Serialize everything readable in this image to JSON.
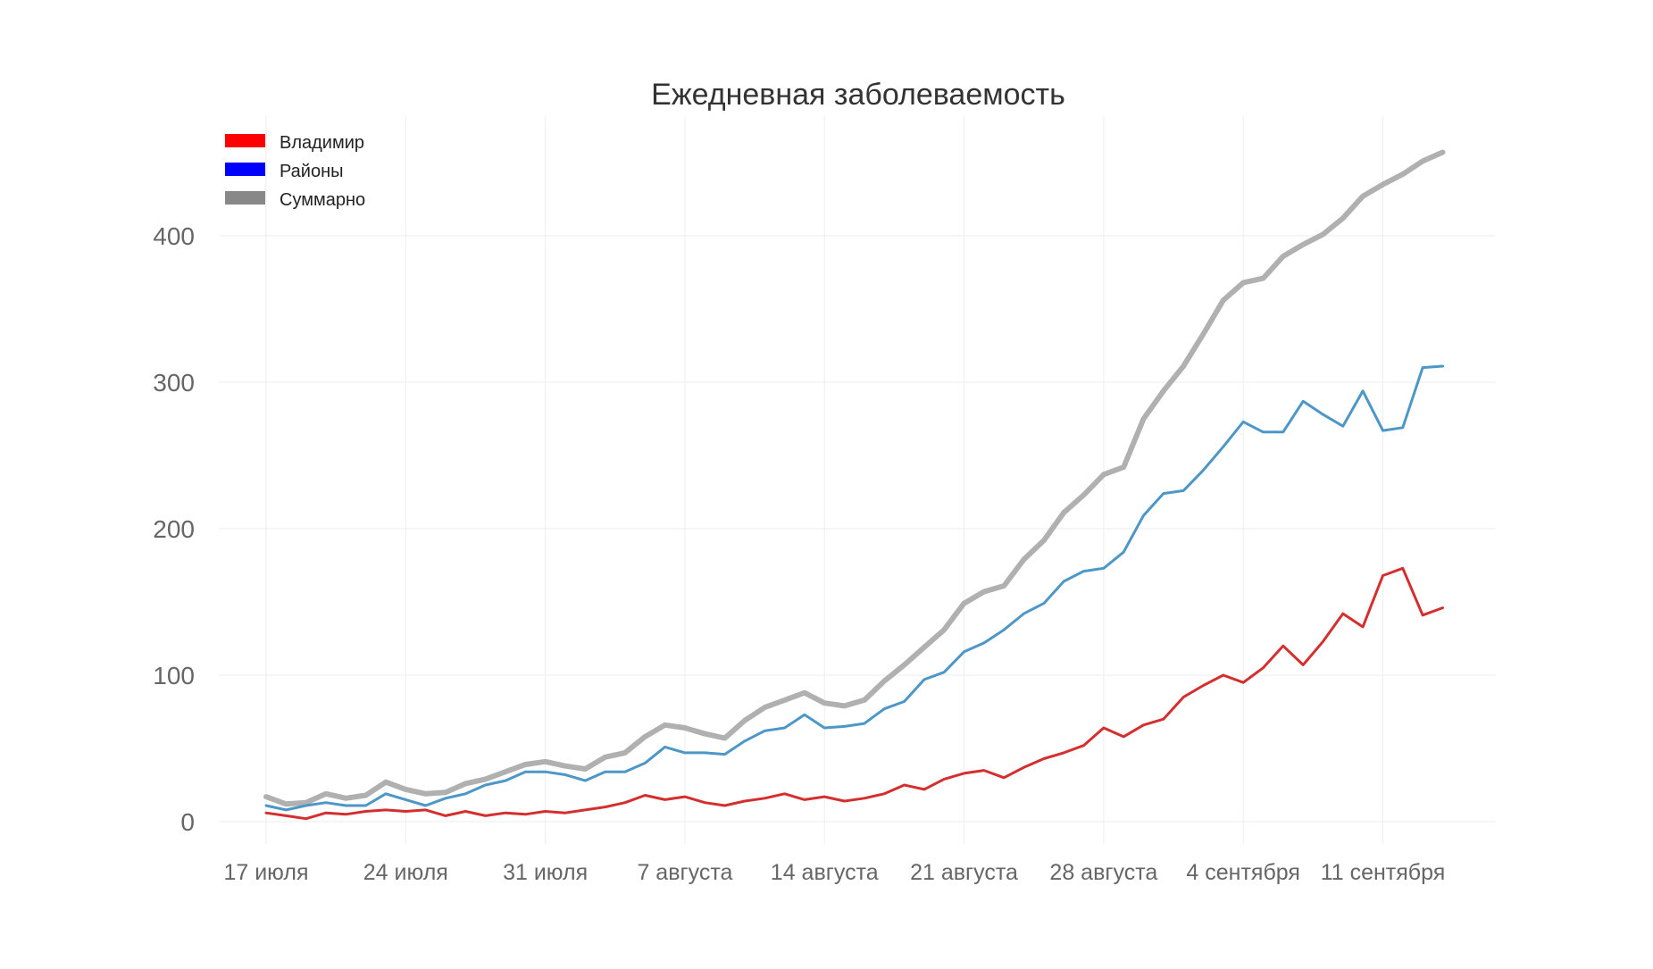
{
  "chart_data": {
    "type": "line",
    "title": "Ежедневная заболеваемость",
    "xlabel": "",
    "ylabel": "",
    "ylim": [
      -20,
      470
    ],
    "yticks": [
      0,
      100,
      200,
      300,
      400
    ],
    "xtick_labels": [
      "17 июля",
      "24 июля",
      "31 июля",
      "7 августа",
      "14 августа",
      "21 августа",
      "28 августа",
      "4 сентября",
      "11 сентября"
    ],
    "x_start": "17 июля",
    "grid": true,
    "legend_position": "top-left",
    "series": [
      {
        "name": "Владимир",
        "legend_color": "#ff0000",
        "line_color": "#d32f2f",
        "values": [
          6,
          4,
          2,
          6,
          5,
          7,
          8,
          7,
          8,
          4,
          7,
          4,
          6,
          5,
          7,
          6,
          8,
          10,
          13,
          18,
          15,
          17,
          13,
          11,
          14,
          16,
          19,
          15,
          17,
          14,
          16,
          19,
          25,
          22,
          29,
          33,
          35,
          30,
          37,
          43,
          47,
          52,
          64,
          58,
          66,
          70,
          85,
          93,
          100,
          95,
          105,
          120,
          107,
          123,
          142,
          133,
          168,
          173,
          141,
          146
        ]
      },
      {
        "name": "Районы",
        "legend_color": "#0000ff",
        "line_color": "#4d96c8",
        "values": [
          11,
          8,
          11,
          13,
          11,
          11,
          19,
          15,
          11,
          16,
          19,
          25,
          28,
          34,
          34,
          32,
          28,
          34,
          34,
          40,
          51,
          47,
          47,
          46,
          55,
          62,
          64,
          73,
          64,
          65,
          67,
          77,
          82,
          97,
          102,
          116,
          122,
          131,
          142,
          149,
          164,
          171,
          173,
          184,
          209,
          224,
          226,
          240,
          256,
          273,
          266,
          266,
          287,
          278,
          270,
          294,
          267,
          269,
          310,
          311
        ]
      },
      {
        "name": "Суммарно",
        "legend_color": "#888888",
        "line_color": "#b0b0b0",
        "values": [
          17,
          12,
          13,
          19,
          16,
          18,
          27,
          22,
          19,
          20,
          26,
          29,
          34,
          39,
          41,
          38,
          36,
          44,
          47,
          58,
          66,
          64,
          60,
          57,
          69,
          78,
          83,
          88,
          81,
          79,
          83,
          96,
          107,
          119,
          131,
          149,
          157,
          161,
          179,
          192,
          211,
          223,
          237,
          242,
          275,
          294,
          311,
          333,
          356,
          368,
          371,
          386,
          394,
          401,
          412,
          427,
          435,
          442,
          451,
          457
        ]
      }
    ]
  }
}
